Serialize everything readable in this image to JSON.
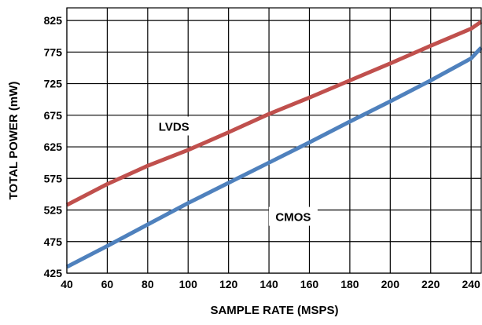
{
  "chart_data": {
    "type": "line",
    "title": "",
    "xlabel": "SAMPLE RATE (MSPS)",
    "ylabel": "TOTAL POWER (mW)",
    "xlim": [
      40,
      245
    ],
    "ylim": [
      425,
      845
    ],
    "x_ticks": [
      40,
      60,
      80,
      100,
      120,
      140,
      160,
      180,
      200,
      220,
      240
    ],
    "y_ticks": [
      425,
      475,
      525,
      575,
      625,
      675,
      725,
      775,
      825
    ],
    "grid": true,
    "colors": {
      "LVDS": "#c0504d",
      "CMOS": "#4f81bd"
    },
    "series": [
      {
        "name": "LVDS",
        "x": [
          40,
          60,
          80,
          100,
          120,
          140,
          160,
          180,
          200,
          220,
          240,
          245
        ],
        "y": [
          533,
          566,
          595,
          620,
          648,
          677,
          703,
          730,
          757,
          785,
          812,
          823
        ]
      },
      {
        "name": "CMOS",
        "x": [
          40,
          60,
          80,
          100,
          120,
          140,
          160,
          180,
          200,
          220,
          240,
          245
        ],
        "y": [
          435,
          468,
          502,
          536,
          568,
          600,
          632,
          665,
          697,
          730,
          765,
          782
        ]
      }
    ]
  }
}
